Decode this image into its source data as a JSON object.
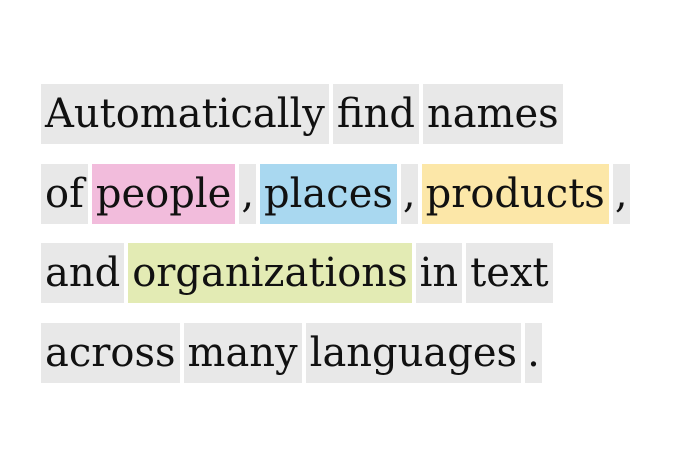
{
  "colors": {
    "token_bg": "#e8e8e8",
    "person": "#f2bcdc",
    "place": "#a9d8f0",
    "product": "#fce7a8",
    "organization": "#e3ebb4"
  },
  "lines": [
    {
      "tokens": [
        {
          "text": "Automatically",
          "type": "plain"
        },
        {
          "text": "find",
          "type": "plain"
        },
        {
          "text": "names",
          "type": "plain"
        }
      ]
    },
    {
      "tokens": [
        {
          "text": "of",
          "type": "plain",
          "tight": true
        },
        {
          "text": "people",
          "type": "person"
        },
        {
          "text": ",",
          "type": "plain",
          "punct": true
        },
        {
          "text": "places",
          "type": "place"
        },
        {
          "text": ",",
          "type": "plain",
          "punct": true
        },
        {
          "text": "products",
          "type": "product"
        },
        {
          "text": ",",
          "type": "plain",
          "punct": true
        }
      ]
    },
    {
      "tokens": [
        {
          "text": "and",
          "type": "plain"
        },
        {
          "text": "organizations",
          "type": "organization"
        },
        {
          "text": "in",
          "type": "plain"
        },
        {
          "text": "text",
          "type": "plain"
        }
      ]
    },
    {
      "tokens": [
        {
          "text": "across",
          "type": "plain"
        },
        {
          "text": "many",
          "type": "plain"
        },
        {
          "text": "languages",
          "type": "plain"
        },
        {
          "text": ".",
          "type": "plain",
          "punct": true
        }
      ]
    }
  ]
}
